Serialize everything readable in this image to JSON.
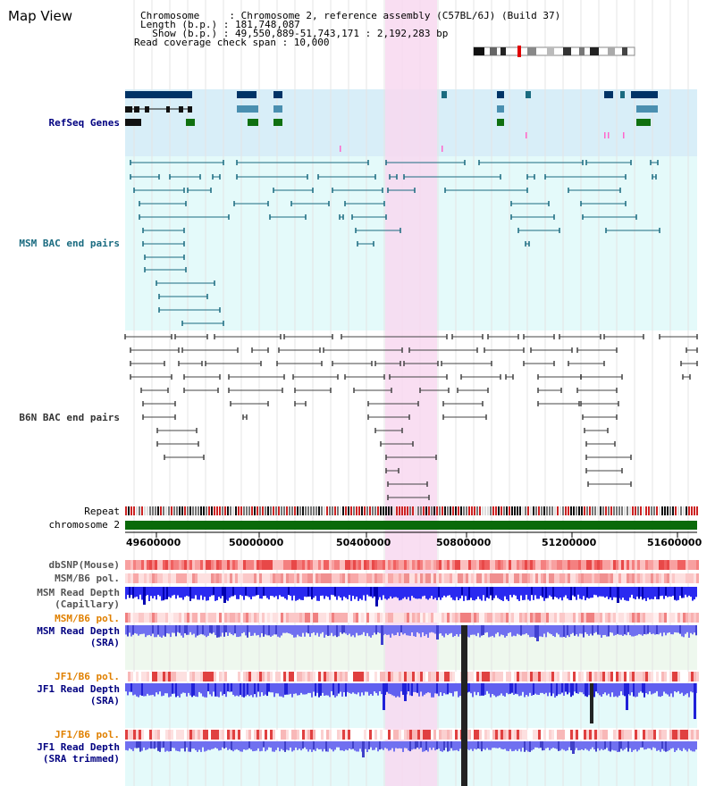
{
  "title": "Map View",
  "info": {
    "chromosome_line": "Chromosome     : Chromosome 2, reference assembly (C57BL/6J) (Build 37)",
    "length_line": "Length (b.p.) : 181,748,087",
    "show_line": "  Show (b.p.) : 49,550,889-51,743,171 : 2,192,283 bp",
    "coverage_line": "Read coverage check span : 10,000"
  },
  "tracks": {
    "refseq": {
      "label": "RefSeq Genes",
      "color": "#000080"
    },
    "msm_bac": {
      "label": "MSM BAC end pairs",
      "color": "#1a6b80"
    },
    "b6n_bac": {
      "label": "B6N BAC end pairs",
      "color": "#333333"
    },
    "repeat": {
      "label": "Repeat"
    },
    "chromosome": {
      "label": "chromosome 2"
    },
    "dbsnp": {
      "label": "dbSNP(Mouse)"
    },
    "msm_b6_pol_1": {
      "label": "MSM/B6 pol."
    },
    "msm_read_depth_cap": {
      "label": "MSM Read Depth\n(Capillary)"
    },
    "msm_b6_pol_2": {
      "label": "MSM/B6 pol."
    },
    "msm_read_depth_sra": {
      "label": "MSM Read Depth\n(SRA)"
    },
    "jf1_b6_pol_1": {
      "label": "JF1/B6 pol."
    },
    "jf1_read_depth_sra": {
      "label": "JF1 Read Depth\n(SRA)"
    },
    "jf1_b6_pol_2": {
      "label": "JF1/B6 pol."
    },
    "jf1_read_depth_trim": {
      "label": "JF1 Read Depth\n(SRA trimmed)"
    }
  },
  "ruler": {
    "ticks": [
      "49600000",
      "50000000",
      "50400000",
      "50800000",
      "51200000",
      "51600000"
    ]
  },
  "colors": {
    "highlight": "#f8d8f0",
    "refseq_bg": "#d8eef8",
    "bac_bg": "#e4fafa",
    "label_blue": "#000080",
    "label_orange": "#e08000",
    "label_teal": "#1a6b80",
    "label_gray": "#333333"
  }
}
